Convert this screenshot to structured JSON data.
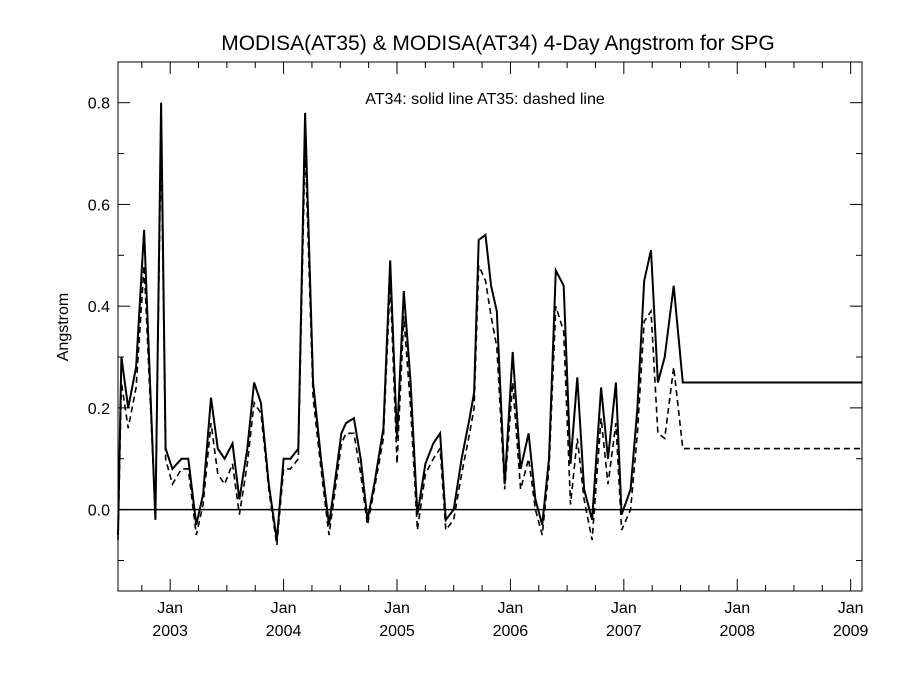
{
  "chart_data": {
    "type": "line",
    "title": "MODISA(AT35) & MODISA(AT34) 4-Day Angstrom for SPG",
    "ylabel": "Angstrom",
    "xlabel": "",
    "annotation": "AT34: solid line   AT35: dashed line",
    "xlim": [
      2002.54,
      2009.1
    ],
    "ylim": [
      -0.16,
      0.88
    ],
    "yticks": [
      0.0,
      0.2,
      0.4,
      0.6,
      0.8
    ],
    "ytick_labels": [
      "0.0",
      "0.2",
      "0.4",
      "0.6",
      "0.8"
    ],
    "xticks": [
      {
        "value": 2003.0,
        "month": "Jan",
        "year": "2003"
      },
      {
        "value": 2004.0,
        "month": "Jan",
        "year": "2004"
      },
      {
        "value": 2005.0,
        "month": "Jan",
        "year": "2005"
      },
      {
        "value": 2006.0,
        "month": "Jan",
        "year": "2006"
      },
      {
        "value": 2007.0,
        "month": "Jan",
        "year": "2007"
      },
      {
        "value": 2008.0,
        "month": "Jan",
        "year": "2008"
      },
      {
        "value": 2009.0,
        "month": "Jan",
        "year": "2009"
      }
    ],
    "zero_line": 0.0,
    "grid": false,
    "series": [
      {
        "name": "AT34",
        "style": "solid",
        "color": "#000000",
        "x": [
          2002.54,
          2002.57,
          2002.63,
          2002.7,
          2002.77,
          2002.87,
          2002.92,
          2002.96,
          2003.02,
          2003.1,
          2003.16,
          2003.23,
          2003.29,
          2003.36,
          2003.42,
          2003.48,
          2003.55,
          2003.61,
          2003.68,
          2003.74,
          2003.8,
          2003.87,
          2003.94,
          2004.0,
          2004.06,
          2004.13,
          2004.19,
          2004.26,
          2004.33,
          2004.4,
          2004.45,
          2004.51,
          2004.55,
          2004.62,
          2004.68,
          2004.74,
          2004.8,
          2004.88,
          2004.94,
          2005.0,
          2005.06,
          2005.12,
          2005.18,
          2005.25,
          2005.32,
          2005.38,
          2005.43,
          2005.5,
          2005.57,
          2005.64,
          2005.68,
          2005.72,
          2005.78,
          2005.83,
          2005.88,
          2005.95,
          2006.02,
          2006.09,
          2006.16,
          2006.22,
          2006.28,
          2006.34,
          2006.4,
          2006.47,
          2006.53,
          2006.59,
          2006.65,
          2006.72,
          2006.8,
          2006.86,
          2006.93,
          2006.98,
          2007.06,
          2007.12,
          2007.18,
          2007.24,
          2007.3,
          2007.36,
          2007.44,
          2007.52,
          2007.6,
          2007.67,
          2007.74,
          2007.8,
          2007.85,
          2007.91,
          2008.0,
          2008.07,
          2008.12,
          2008.18,
          2008.24,
          2008.3,
          2008.36,
          2008.42,
          2008.48,
          2008.56,
          2008.62,
          2008.69,
          2008.76,
          2008.82,
          2008.87,
          2008.93,
          2009.0,
          2009.06,
          2009.1
        ],
        "y": [
          -0.05,
          0.3,
          0.2,
          0.28,
          0.55,
          -0.02,
          0.8,
          0.12,
          0.08,
          0.1,
          0.1,
          -0.03,
          0.03,
          0.22,
          0.12,
          0.1,
          0.13,
          0.02,
          0.12,
          0.25,
          0.21,
          0.05,
          -0.06,
          0.1,
          0.1,
          0.12,
          0.78,
          0.25,
          0.1,
          -0.03,
          0.05,
          0.15,
          0.17,
          0.18,
          0.1,
          -0.02,
          0.05,
          0.16,
          0.49,
          0.14,
          0.43,
          0.25,
          -0.01,
          0.09,
          0.13,
          0.15,
          -0.02,
          0.0,
          0.1,
          0.18,
          0.23,
          0.53,
          0.54,
          0.44,
          0.39,
          0.05,
          0.31,
          0.08,
          0.15,
          0.02,
          -0.03,
          0.1,
          0.47,
          0.44,
          0.09,
          0.26,
          0.04,
          -0.02,
          0.24,
          0.1,
          0.25,
          -0.01,
          0.04,
          0.2,
          0.45,
          0.51,
          0.25,
          0.3,
          0.44,
          0.25,
          0.25,
          0.25,
          0.25,
          0.25,
          0.25,
          0.25,
          0.25,
          0.25,
          0.25,
          0.25,
          0.25,
          0.25,
          0.25,
          0.25,
          0.25,
          0.25,
          0.25,
          0.25,
          0.25,
          0.25,
          0.25,
          0.25,
          0.25,
          0.25,
          0.25
        ]
      },
      {
        "name": "AT35",
        "style": "dashed",
        "color": "#000000",
        "x": [
          2002.54,
          2002.57,
          2002.63,
          2002.7,
          2002.77,
          2002.87,
          2002.92,
          2002.96,
          2003.02,
          2003.1,
          2003.16,
          2003.23,
          2003.29,
          2003.36,
          2003.42,
          2003.48,
          2003.55,
          2003.61,
          2003.68,
          2003.74,
          2003.8,
          2003.87,
          2003.94,
          2004.0,
          2004.06,
          2004.13,
          2004.19,
          2004.26,
          2004.33,
          2004.4,
          2004.45,
          2004.51,
          2004.55,
          2004.62,
          2004.68,
          2004.74,
          2004.8,
          2004.88,
          2004.94,
          2005.0,
          2005.06,
          2005.12,
          2005.18,
          2005.25,
          2005.32,
          2005.38,
          2005.43,
          2005.5,
          2005.57,
          2005.64,
          2005.68,
          2005.72,
          2005.78,
          2005.83,
          2005.88,
          2005.95,
          2006.02,
          2006.09,
          2006.16,
          2006.22,
          2006.28,
          2006.34,
          2006.4,
          2006.47,
          2006.53,
          2006.59,
          2006.65,
          2006.72,
          2006.8,
          2006.86,
          2006.93,
          2006.98,
          2007.06,
          2007.12,
          2007.18,
          2007.24,
          2007.3,
          2007.36,
          2007.44,
          2007.52,
          2007.6,
          2007.67,
          2007.74,
          2007.8,
          2007.85,
          2007.91,
          2008.0,
          2008.07,
          2008.12,
          2008.18,
          2008.24,
          2008.3,
          2008.36,
          2008.42,
          2008.48,
          2008.56,
          2008.62,
          2008.69,
          2008.76,
          2008.82,
          2008.87,
          2008.93,
          2009.0,
          2009.06,
          2009.1
        ],
        "y": [
          -0.06,
          0.25,
          0.16,
          0.24,
          0.48,
          -0.01,
          0.74,
          0.1,
          0.05,
          0.08,
          0.08,
          -0.05,
          0.01,
          0.17,
          0.07,
          0.05,
          0.09,
          -0.01,
          0.09,
          0.21,
          0.19,
          0.04,
          -0.07,
          0.08,
          0.08,
          0.1,
          0.72,
          0.22,
          0.08,
          -0.05,
          0.03,
          0.13,
          0.15,
          0.15,
          0.07,
          -0.03,
          0.04,
          0.14,
          0.45,
          0.09,
          0.38,
          0.2,
          -0.04,
          0.07,
          0.1,
          0.12,
          -0.04,
          -0.02,
          0.07,
          0.15,
          0.2,
          0.48,
          0.45,
          0.38,
          0.32,
          0.04,
          0.25,
          0.04,
          0.1,
          0.0,
          -0.05,
          0.08,
          0.4,
          0.35,
          0.01,
          0.14,
          0.02,
          -0.06,
          0.18,
          0.05,
          0.17,
          -0.04,
          0.0,
          0.15,
          0.37,
          0.39,
          0.15,
          0.14,
          0.28,
          0.12,
          0.12,
          0.12,
          0.12,
          0.12,
          0.12,
          0.12,
          0.12,
          0.12,
          0.12,
          0.12,
          0.12,
          0.12,
          0.12,
          0.12,
          0.12,
          0.12,
          0.12,
          0.12,
          0.12,
          0.12,
          0.12,
          0.12,
          0.12,
          0.12,
          0.12
        ]
      }
    ]
  }
}
